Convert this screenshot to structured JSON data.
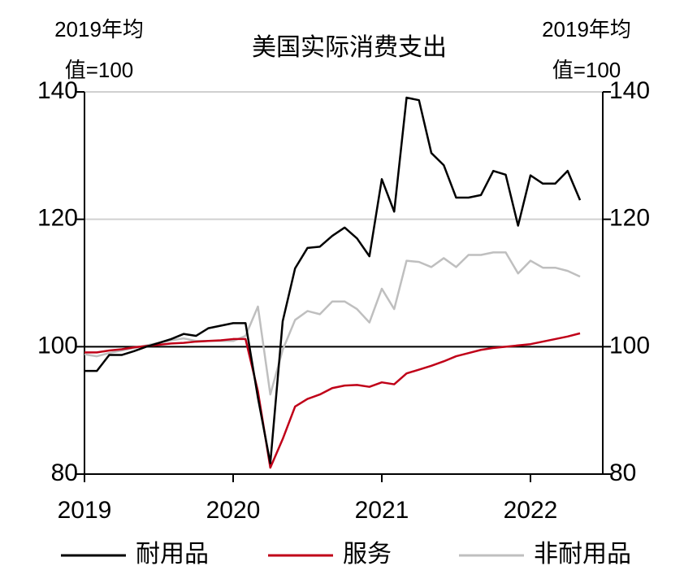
{
  "chart_data": {
    "type": "line",
    "title": "美国实际消费支出",
    "ylabel": [
      "2019年均",
      "值=100"
    ],
    "y2label": [
      "2019年均",
      "值=100"
    ],
    "categories": [
      "2019",
      null,
      null,
      null,
      null,
      null,
      null,
      null,
      null,
      null,
      null,
      null,
      "2020",
      null,
      null,
      null,
      null,
      null,
      null,
      null,
      null,
      null,
      null,
      null,
      "2021",
      null,
      null,
      null,
      null,
      null,
      null,
      null,
      null,
      null,
      null,
      null,
      "2022",
      null,
      null,
      null,
      null
    ],
    "series": [
      {
        "name": "耐用品",
        "color": "#000000",
        "values": [
          96.2,
          96.2,
          98.7,
          98.7,
          99.3,
          100,
          100.6,
          101.2,
          102,
          101.7,
          102.9,
          103.3,
          103.7,
          103.7,
          92,
          81.7,
          104,
          112.3,
          115.5,
          115.7,
          117.4,
          118.7,
          117,
          114.2,
          126.3,
          121.2,
          139.1,
          138.7,
          130.4,
          128.5,
          123.4,
          123.4,
          123.8,
          127.6,
          127,
          119,
          126.9,
          125.6,
          125.6,
          127.6,
          123
        ]
      },
      {
        "name": "服务",
        "color": "#c00018",
        "values": [
          99.1,
          99.1,
          99.4,
          99.6,
          99.9,
          100.1,
          100.3,
          100.5,
          100.6,
          100.8,
          100.9,
          101,
          101.2,
          101.2,
          93,
          81,
          85.5,
          90.6,
          91.8,
          92.5,
          93.5,
          93.9,
          94,
          93.7,
          94.4,
          94.1,
          95.8,
          96.4,
          97,
          97.7,
          98.5,
          99,
          99.5,
          99.8,
          100,
          100.2,
          100.4,
          100.8,
          101.2,
          101.6,
          102.1
        ]
      },
      {
        "name": "非耐用品",
        "color": "#bfbfbf",
        "values": [
          98.8,
          98.5,
          99,
          99.4,
          99.8,
          100.2,
          100.6,
          101,
          101.3,
          100.9,
          100.9,
          100.9,
          100.9,
          101.7,
          106.3,
          92.5,
          99.5,
          104.2,
          105.6,
          105.1,
          107.1,
          107.1,
          105.9,
          103.8,
          109.1,
          105.9,
          113.5,
          113.3,
          112.5,
          113.9,
          112.5,
          114.4,
          114.4,
          114.8,
          114.8,
          111.5,
          113.5,
          112.4,
          112.4,
          111.9,
          111
        ]
      }
    ],
    "ylim": [
      80,
      140
    ],
    "yticks": [
      80,
      100,
      120,
      140
    ],
    "y2lim": [
      80,
      140
    ],
    "y2ticks": [
      80,
      100,
      120,
      140
    ],
    "grid": true,
    "hline": 100,
    "legend": "bottom"
  }
}
